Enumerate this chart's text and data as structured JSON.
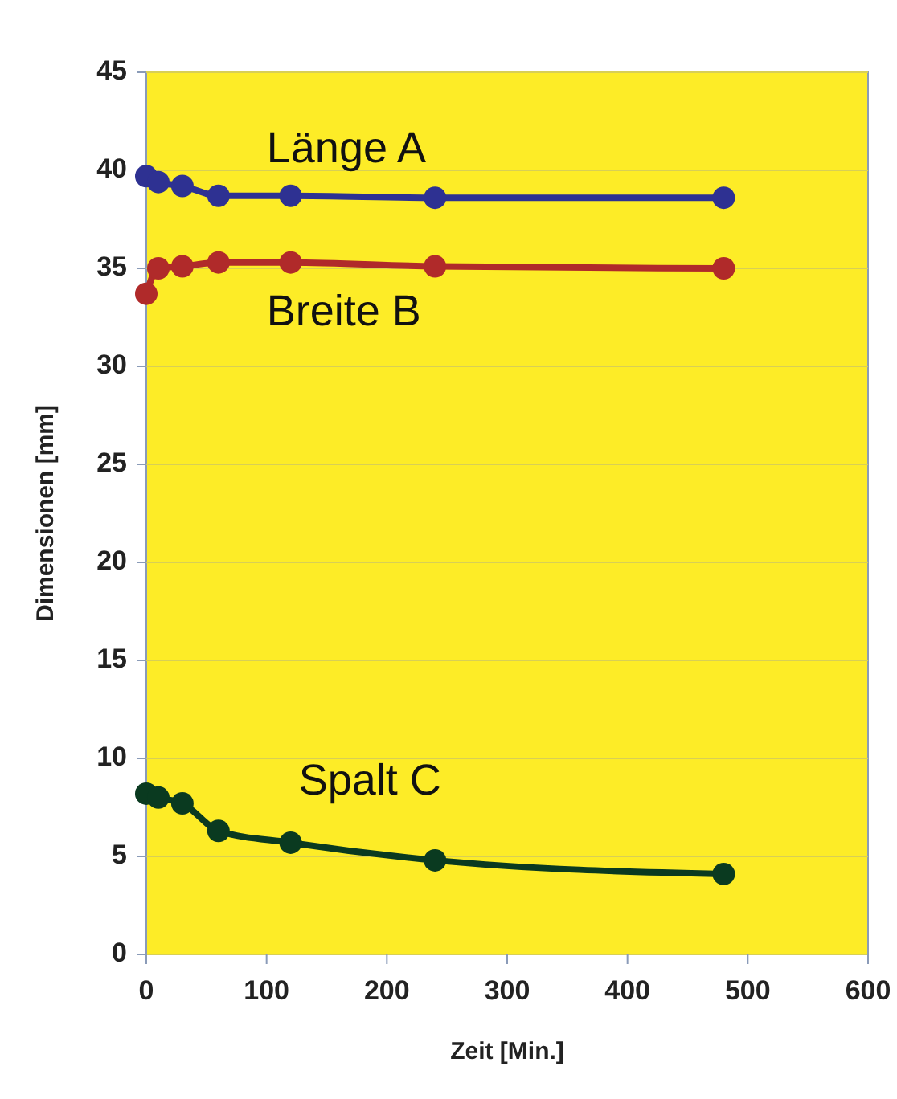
{
  "chart_data": {
    "type": "line",
    "xlabel": "Zeit [Min.]",
    "ylabel": "Dimensionen [mm]",
    "x": [
      0,
      10,
      30,
      60,
      120,
      240,
      480
    ],
    "series": [
      {
        "name": "Länge A",
        "color": "#2e3192",
        "values": [
          39.7,
          39.4,
          39.2,
          38.7,
          38.7,
          38.6,
          38.6
        ]
      },
      {
        "name": "Breite B",
        "color": "#b02a2a",
        "values": [
          33.7,
          35.0,
          35.1,
          35.3,
          35.3,
          35.1,
          35.0
        ]
      },
      {
        "name": "Spalt C",
        "color": "#0a3a20",
        "values": [
          8.2,
          8.0,
          7.7,
          6.3,
          5.7,
          4.8,
          4.1
        ]
      }
    ],
    "xlim": [
      0,
      600
    ],
    "xticks": [
      0,
      100,
      200,
      300,
      400,
      500,
      600
    ],
    "ylim": [
      0,
      45
    ],
    "yticks": [
      0,
      5,
      10,
      15,
      20,
      25,
      30,
      35,
      40,
      45
    ],
    "grid": "y",
    "marker": "circle",
    "line_style": "solid"
  }
}
